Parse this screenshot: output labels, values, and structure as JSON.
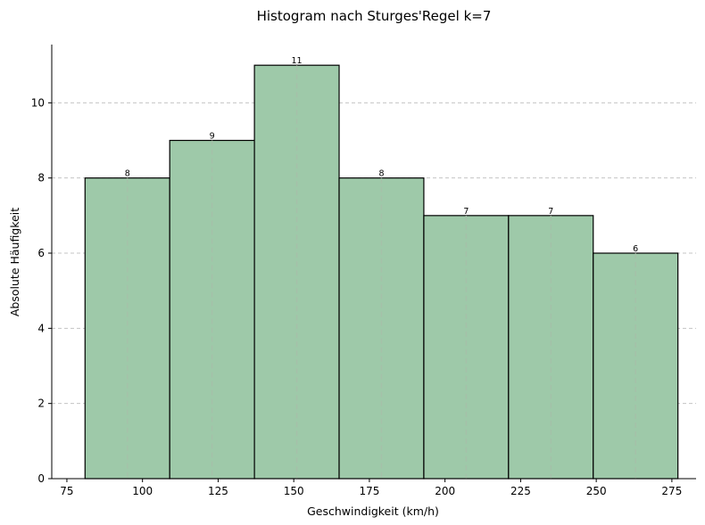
{
  "chart_data": {
    "type": "bar",
    "title": "Histogram nach Sturges'Regel k=7",
    "xlabel": "Geschwindigkeit (km/h)",
    "ylabel": "Absolute Häufigkeit",
    "bins": [
      {
        "start": 81,
        "end": 109,
        "count": 8
      },
      {
        "start": 109,
        "end": 137,
        "count": 9
      },
      {
        "start": 137,
        "end": 165,
        "count": 11
      },
      {
        "start": 165,
        "end": 193,
        "count": 8
      },
      {
        "start": 193,
        "end": 221,
        "count": 7
      },
      {
        "start": 221,
        "end": 249,
        "count": 7
      },
      {
        "start": 249,
        "end": 277,
        "count": 6
      }
    ],
    "xlim": [
      70,
      283
    ],
    "ylim": [
      0,
      11.55
    ],
    "xticks": [
      75,
      100,
      125,
      150,
      175,
      200,
      225,
      250,
      275
    ],
    "yticks": [
      0,
      2,
      4,
      6,
      8,
      10
    ],
    "grid": "y-dashed",
    "colors": {
      "bar": "#9ec9a9",
      "edge": "#000000",
      "grid": "#c4c4c4"
    }
  }
}
